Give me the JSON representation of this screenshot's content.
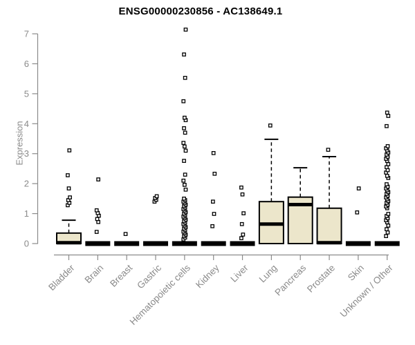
{
  "chart_data": {
    "type": "boxplot",
    "title": "ENSG00000230856 - AC138649.1",
    "xlabel": "",
    "ylabel": "Expression",
    "ylim": [
      0,
      7
    ],
    "yticks": [
      0,
      1,
      2,
      3,
      4,
      5,
      6,
      7
    ],
    "grid": false,
    "legend": false,
    "categories": [
      "Bladder",
      "Brain",
      "Breast",
      "Gastric",
      "Hematopoietic cells",
      "Kidney",
      "Liver",
      "Lung",
      "Pancreas",
      "Prostate",
      "Skin",
      "Unknown / Other"
    ],
    "colors": {
      "box_fill": "#ECE6CB",
      "box_stroke": "#000000",
      "axis": "#8a8a8a",
      "tick_label": "#8a8a8a",
      "title": "#000000",
      "outlier_fill": "#ffffff",
      "background": "#ffffff"
    },
    "boxes": [
      {
        "label": "Bladder",
        "whisker_low": 0,
        "q1": 0,
        "median": 0.03,
        "q3": 0.35,
        "whisker_high": 0.78,
        "outliers": [
          1.28,
          1.36,
          1.45,
          1.54,
          1.84,
          2.28,
          3.11
        ]
      },
      {
        "label": "Brain",
        "whisker_low": 0,
        "q1": 0,
        "median": 0,
        "q3": 0,
        "whisker_high": 0,
        "outliers": [
          0.39,
          0.72,
          0.82,
          0.93,
          1.02,
          1.11,
          2.14
        ]
      },
      {
        "label": "Breast",
        "whisker_low": 0,
        "q1": 0,
        "median": 0,
        "q3": 0,
        "whisker_high": 0,
        "outliers": [
          0.32
        ]
      },
      {
        "label": "Gastric",
        "whisker_low": 0,
        "q1": 0,
        "median": 0,
        "q3": 0,
        "whisker_high": 0,
        "outliers": [
          1.4,
          1.46,
          1.52,
          1.58
        ]
      },
      {
        "label": "Hematopoietic cells",
        "whisker_low": 0,
        "q1": 0,
        "median": 0,
        "q3": 0,
        "whisker_high": 0,
        "outliers": [
          0.14,
          0.2,
          0.25,
          0.3,
          0.35,
          0.4,
          0.45,
          0.5,
          0.55,
          0.6,
          0.65,
          0.7,
          0.75,
          0.8,
          0.85,
          0.9,
          0.95,
          1.0,
          1.05,
          1.1,
          1.15,
          1.2,
          1.25,
          1.3,
          1.35,
          1.4,
          1.45,
          1.5,
          1.8,
          1.96,
          2.1,
          2.3,
          2.76,
          3.1,
          3.24,
          3.36,
          3.7,
          3.85,
          4.12,
          4.2,
          4.75,
          5.53,
          6.31,
          7.14
        ]
      },
      {
        "label": "Kidney",
        "whisker_low": 0,
        "q1": 0,
        "median": 0,
        "q3": 0,
        "whisker_high": 0,
        "outliers": [
          0.58,
          0.99,
          1.4,
          2.33,
          3.02
        ]
      },
      {
        "label": "Liver",
        "whisker_low": 0,
        "q1": 0,
        "median": 0,
        "q3": 0,
        "whisker_high": 0,
        "outliers": [
          0.18,
          0.3,
          0.65,
          1.01,
          1.64,
          1.87
        ]
      },
      {
        "label": "Lung",
        "whisker_low": 0,
        "q1": 0,
        "median": 0.65,
        "q3": 1.4,
        "whisker_high": 3.48,
        "outliers": [
          3.94
        ]
      },
      {
        "label": "Pancreas",
        "whisker_low": 0,
        "q1": 0,
        "median": 1.3,
        "q3": 1.55,
        "whisker_high": 2.53,
        "outliers": []
      },
      {
        "label": "Prostate",
        "whisker_low": 0,
        "q1": 0,
        "median": 0.03,
        "q3": 1.18,
        "whisker_high": 2.9,
        "outliers": [
          3.13
        ]
      },
      {
        "label": "Skin",
        "whisker_low": 0,
        "q1": 0,
        "median": 0,
        "q3": 0,
        "whisker_high": 0,
        "outliers": [
          1.04,
          1.84
        ]
      },
      {
        "label": "Unknown / Other",
        "whisker_low": 0,
        "q1": 0,
        "median": 0,
        "q3": 0,
        "whisker_high": 0,
        "outliers": [
          0.25,
          0.37,
          0.48,
          0.6,
          0.71,
          0.78,
          0.85,
          0.92,
          0.99,
          1.18,
          1.24,
          1.3,
          1.36,
          1.42,
          1.48,
          1.54,
          1.6,
          1.66,
          1.72,
          1.78,
          1.84,
          1.9,
          1.98,
          2.19,
          2.26,
          2.37,
          2.45,
          2.55,
          2.65,
          2.76,
          2.83,
          2.9,
          2.97,
          3.04,
          3.11,
          3.18,
          3.25,
          3.92,
          4.26,
          4.37
        ]
      }
    ]
  }
}
